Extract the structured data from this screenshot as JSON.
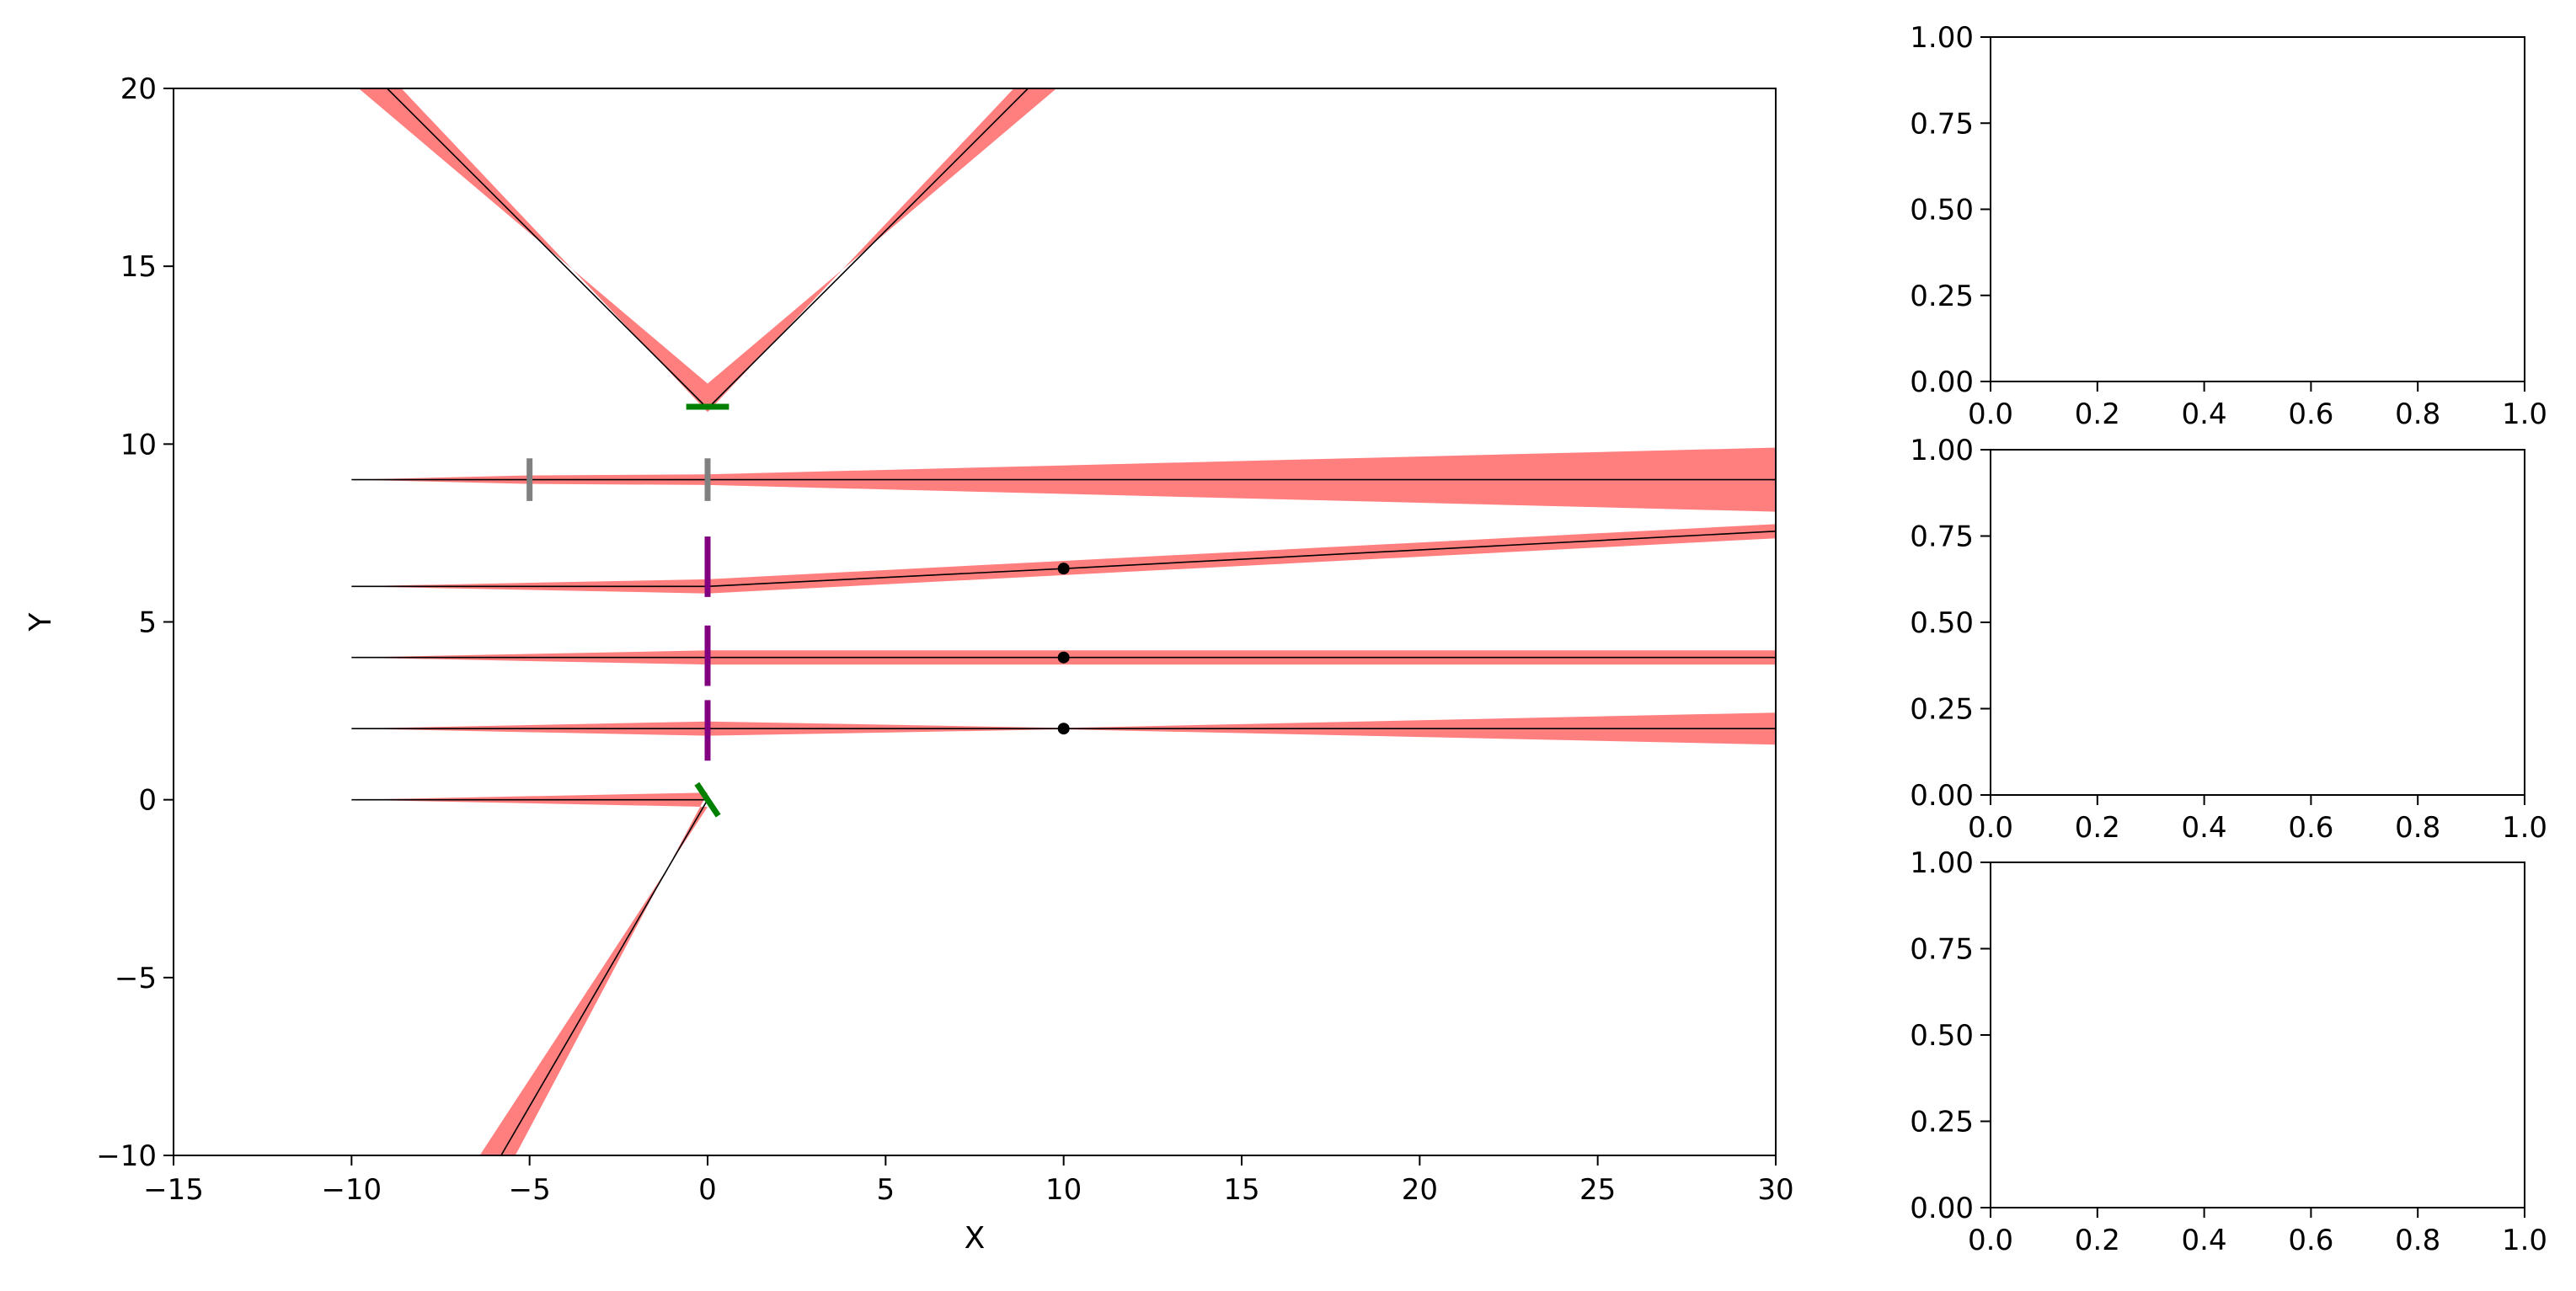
{
  "chart_data": [
    {
      "type": "line",
      "subtype": "optical-beam-path-diagram",
      "xlabel": "X",
      "ylabel": "Y",
      "xlim": [
        -15,
        30
      ],
      "ylim": [
        -10,
        20
      ],
      "xticks": [
        -15,
        -10,
        -5,
        0,
        5,
        10,
        15,
        20,
        25,
        30
      ],
      "xtick_labels": [
        "−15",
        "−10",
        "−5",
        "0",
        "5",
        "10",
        "15",
        "20",
        "25",
        "30"
      ],
      "yticks": [
        -10,
        -5,
        0,
        5,
        10,
        15,
        20
      ],
      "ytick_labels": [
        "−10",
        "−5",
        "0",
        "5",
        "10",
        "15",
        "20"
      ],
      "grid": false,
      "beam_color": "#ff7f7f",
      "ray_color": "#000000",
      "beams": [
        {
          "ray": [
            [
              -9,
              20
            ],
            [
              0,
              11
            ],
            [
              9,
              20
            ]
          ],
          "upper": [
            [
              -9.8,
              20
            ],
            [
              0,
              11.7
            ],
            [
              9.8,
              20
            ]
          ],
          "lower": [
            [
              -8.6,
              20
            ],
            [
              0,
              10.9
            ],
            [
              8.6,
              20
            ]
          ]
        },
        {
          "ray": [
            [
              -10,
              9
            ],
            [
              30,
              9
            ]
          ],
          "upper": [
            [
              -10,
              9
            ],
            [
              -5,
              9.12
            ],
            [
              0,
              9.15
            ],
            [
              30,
              9.9
            ]
          ],
          "lower": [
            [
              -10,
              9
            ],
            [
              -5,
              8.88
            ],
            [
              0,
              8.85
            ],
            [
              30,
              8.1
            ]
          ]
        },
        {
          "ray": [
            [
              -10,
              6
            ],
            [
              0,
              6
            ],
            [
              10,
              6.5
            ],
            [
              30,
              7.55
            ]
          ],
          "upper": [
            [
              -10,
              6
            ],
            [
              0,
              6.2
            ],
            [
              30,
              7.75
            ]
          ],
          "lower": [
            [
              -10,
              6
            ],
            [
              0,
              5.8
            ],
            [
              30,
              7.35
            ]
          ]
        },
        {
          "ray": [
            [
              -10,
              4
            ],
            [
              30,
              4
            ]
          ],
          "upper": [
            [
              -10,
              4
            ],
            [
              0,
              4.2
            ],
            [
              30,
              4.2
            ]
          ],
          "lower": [
            [
              -10,
              4
            ],
            [
              0,
              3.8
            ],
            [
              30,
              3.8
            ]
          ]
        },
        {
          "ray": [
            [
              -10,
              2
            ],
            [
              30,
              2
            ]
          ],
          "upper": [
            [
              -10,
              2
            ],
            [
              0,
              2.2
            ],
            [
              10,
              2.02
            ],
            [
              30,
              2.45
            ]
          ],
          "lower": [
            [
              -10,
              2
            ],
            [
              0,
              1.8
            ],
            [
              10,
              1.98
            ],
            [
              30,
              1.55
            ]
          ]
        },
        {
          "ray": [
            [
              -10,
              0
            ],
            [
              0,
              0
            ],
            [
              -5.8,
              -10
            ]
          ],
          "upper": [
            [
              -10,
              0
            ],
            [
              0,
              0.2
            ],
            [
              -5.4,
              -10
            ]
          ],
          "lower": [
            [
              -10,
              0
            ],
            [
              0,
              -0.2
            ],
            [
              -6.4,
              -10
            ]
          ]
        }
      ],
      "elements": [
        {
          "kind": "mirror",
          "color": "#008000",
          "from": [
            -0.6,
            11.05
          ],
          "to": [
            0.6,
            11.05
          ]
        },
        {
          "kind": "aperture",
          "color": "#808080",
          "from": [
            -5,
            8.4
          ],
          "to": [
            -5,
            9.6
          ]
        },
        {
          "kind": "aperture",
          "color": "#808080",
          "from": [
            0,
            8.4
          ],
          "to": [
            0,
            9.6
          ]
        },
        {
          "kind": "lens",
          "color": "#800080",
          "from": [
            0,
            5.7
          ],
          "to": [
            0,
            7.4
          ]
        },
        {
          "kind": "lens",
          "color": "#800080",
          "from": [
            0,
            3.2
          ],
          "to": [
            0,
            4.9
          ]
        },
        {
          "kind": "lens",
          "color": "#800080",
          "from": [
            0,
            1.1
          ],
          "to": [
            0,
            2.8
          ]
        },
        {
          "kind": "mirror",
          "color": "#008000",
          "from": [
            -0.3,
            0.45
          ],
          "to": [
            0.3,
            -0.45
          ]
        }
      ],
      "focal_points": [
        [
          10,
          6.5
        ],
        [
          10,
          4
        ],
        [
          10,
          2
        ]
      ]
    },
    {
      "type": "line",
      "xlim": [
        0,
        1
      ],
      "ylim": [
        0,
        1
      ],
      "xtick_labels": [
        "0.0",
        "0.2",
        "0.4",
        "0.6",
        "0.8",
        "1.0"
      ],
      "ytick_labels": [
        "0.00",
        "0.25",
        "0.50",
        "0.75",
        "1.00"
      ],
      "series": []
    },
    {
      "type": "line",
      "xlim": [
        0,
        1
      ],
      "ylim": [
        0,
        1
      ],
      "xtick_labels": [
        "0.0",
        "0.2",
        "0.4",
        "0.6",
        "0.8",
        "1.0"
      ],
      "ytick_labels": [
        "0.00",
        "0.25",
        "0.50",
        "0.75",
        "1.00"
      ],
      "series": []
    },
    {
      "type": "line",
      "xlim": [
        0,
        1
      ],
      "ylim": [
        0,
        1
      ],
      "xtick_labels": [
        "0.0",
        "0.2",
        "0.4",
        "0.6",
        "0.8",
        "1.0"
      ],
      "ytick_labels": [
        "0.00",
        "0.25",
        "0.50",
        "0.75",
        "1.00"
      ],
      "series": []
    }
  ]
}
